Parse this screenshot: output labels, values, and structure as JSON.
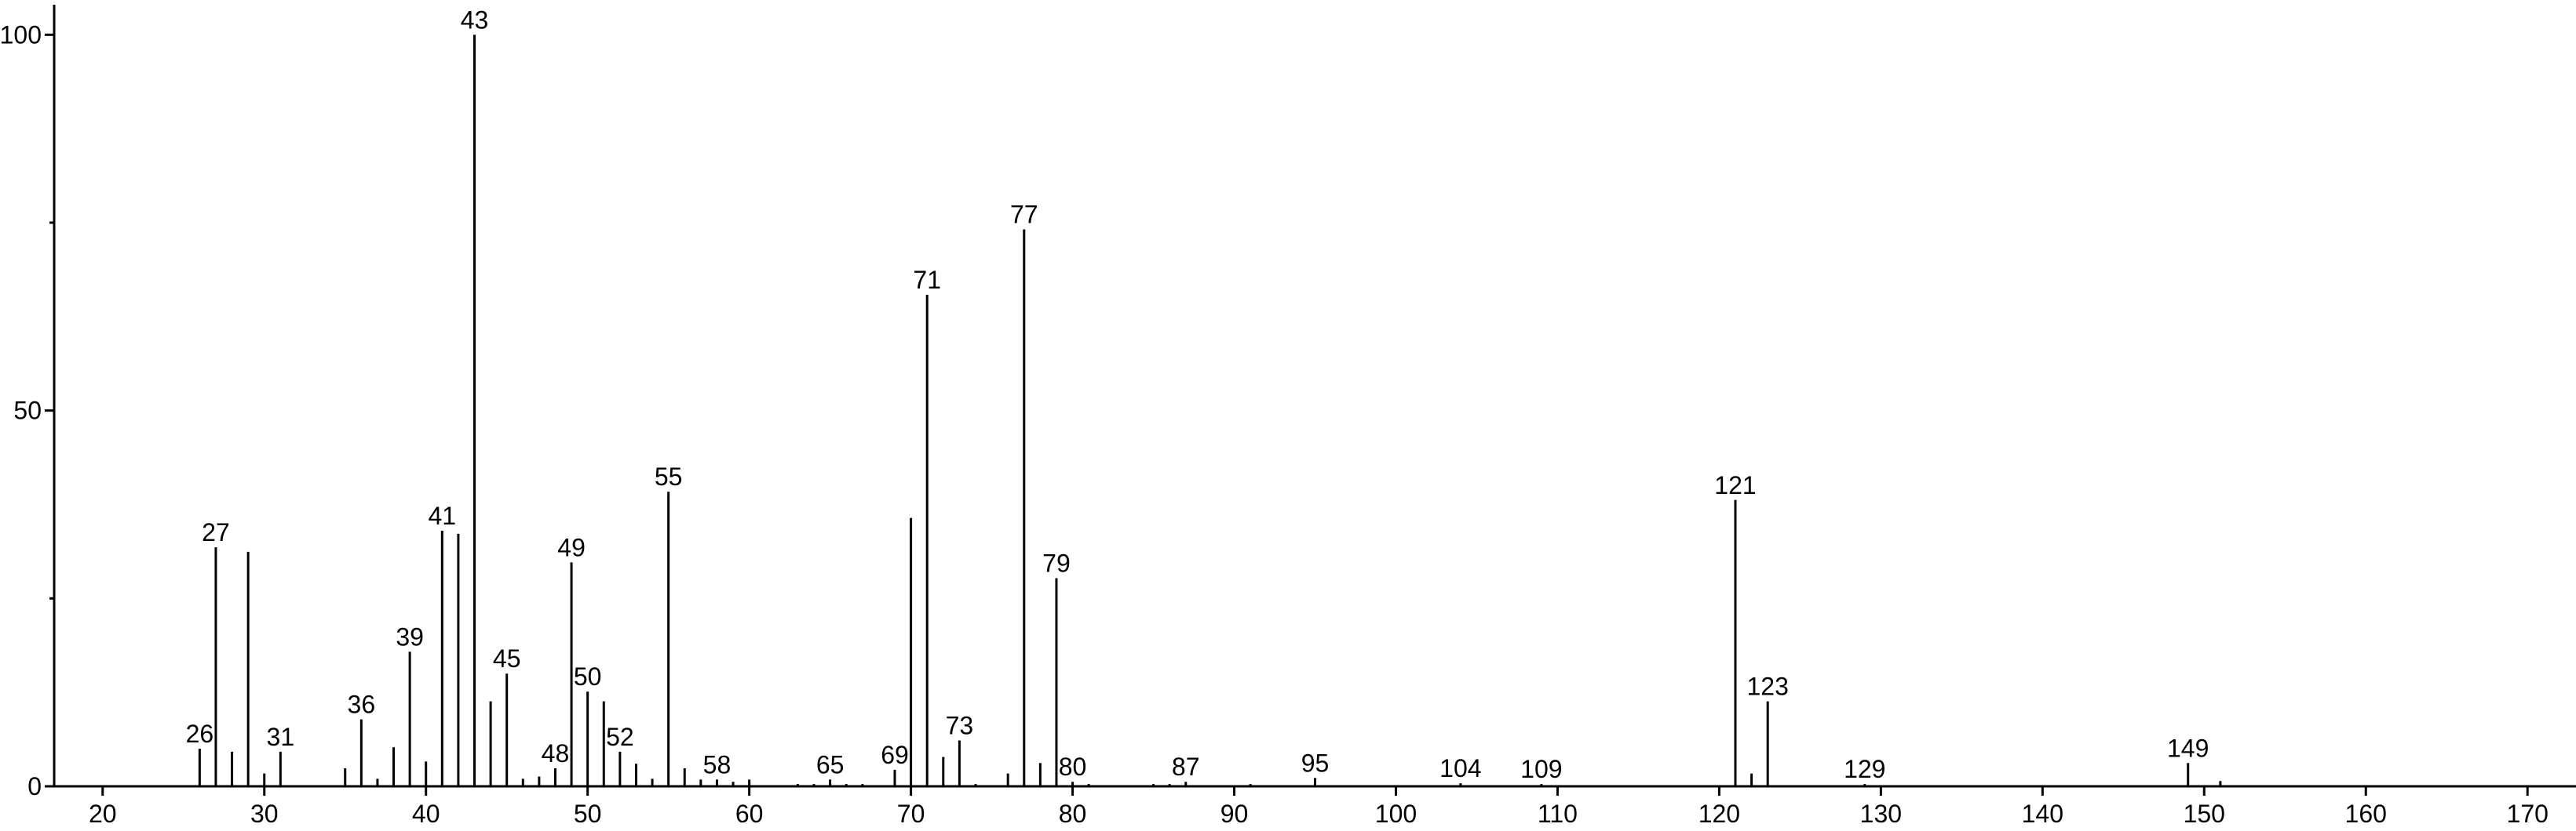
{
  "chart_data": {
    "type": "bar",
    "color": "#000000",
    "x": [
      26,
      27,
      28,
      29,
      30,
      31,
      35,
      36,
      37,
      38,
      39,
      40,
      41,
      42,
      43,
      44,
      45,
      46,
      47,
      48,
      49,
      50,
      51,
      52,
      53,
      54,
      55,
      56,
      57,
      58,
      59,
      60,
      63,
      64,
      65,
      66,
      67,
      69,
      70,
      71,
      72,
      73,
      74,
      76,
      77,
      78,
      79,
      80,
      81,
      85,
      86,
      87,
      91,
      95,
      104,
      109,
      121,
      122,
      123,
      129,
      149,
      151
    ],
    "values": [
      5.0,
      31.8,
      4.6,
      31.2,
      1.7,
      4.6,
      2.4,
      8.9,
      1.0,
      5.2,
      17.9,
      3.3,
      34.0,
      33.6,
      100,
      11.3,
      15.0,
      1.0,
      1.3,
      2.4,
      29.8,
      12.6,
      11.3,
      4.6,
      3.0,
      1.0,
      39.2,
      2.4,
      0.9,
      0.9,
      0.6,
      0.9,
      0.3,
      0.3,
      0.9,
      0.3,
      0.3,
      2.2,
      35.7,
      65.4,
      3.9,
      6.1,
      0.3,
      1.7,
      74.1,
      3.1,
      27.7,
      0.6,
      0.3,
      0.3,
      0.3,
      0.6,
      0.3,
      1.1,
      0.4,
      0.3,
      38.1,
      1.7,
      11.3,
      0.3,
      3.1,
      0.7
    ],
    "annotations": [
      26,
      27,
      31,
      36,
      39,
      41,
      43,
      45,
      48,
      49,
      50,
      52,
      55,
      58,
      65,
      69,
      71,
      73,
      77,
      79,
      80,
      87,
      95,
      104,
      109,
      121,
      123,
      129,
      149
    ],
    "xlim": [
      17,
      173
    ],
    "xticks": [
      20,
      30,
      40,
      50,
      60,
      70,
      80,
      90,
      100,
      110,
      120,
      130,
      140,
      150,
      160,
      170
    ],
    "ylim": [
      0,
      104
    ],
    "yticks": [
      0,
      50,
      100
    ],
    "yminorticks": [
      25,
      75
    ]
  }
}
